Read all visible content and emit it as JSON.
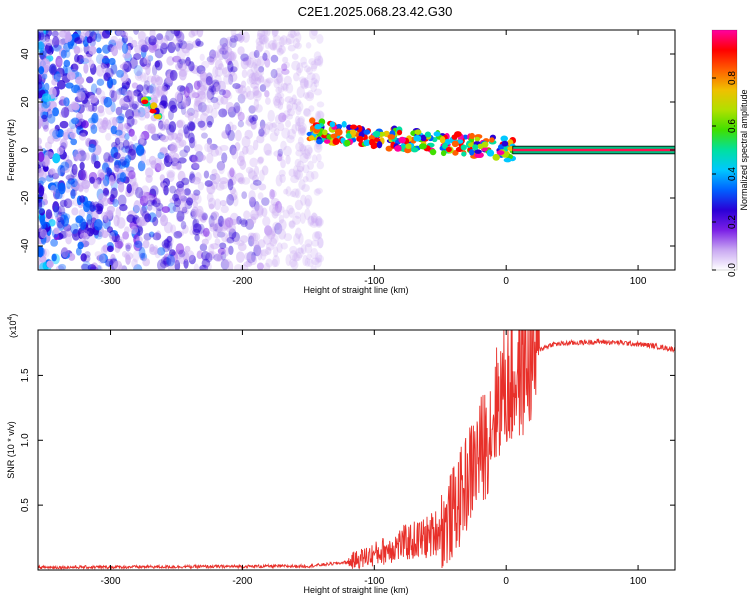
{
  "title": "C2E1.2025.068.23.42.G30",
  "chart_data": [
    {
      "type": "heatmap",
      "name": "spectrogram",
      "xlabel": "Height of straight line (km)",
      "ylabel": "Frequency (Hz)",
      "xlim": [
        -355,
        128
      ],
      "ylim": [
        -50,
        50
      ],
      "xticks": [
        -300,
        -200,
        -100,
        0,
        100
      ],
      "yticks": [
        -40,
        -20,
        0,
        20,
        40
      ],
      "colorbar": {
        "label": "Normalized spectral amplitude",
        "range": [
          0,
          1
        ],
        "ticks": [
          "0.0",
          "0.2",
          "0.4",
          "0.6",
          "0.8"
        ],
        "colors": [
          "#ffffff",
          "#c9a8f2",
          "#7a1fe6",
          "#2a00d6",
          "#0060ff",
          "#00c8ff",
          "#00e0a0",
          "#40e000",
          "#b0e000",
          "#f0c000",
          "#ff6000",
          "#ff0000",
          "#ff00a0"
        ]
      },
      "features": [
        {
          "desc": "broadband noise",
          "x": [
            -355,
            -140
          ],
          "y": [
            -50,
            50
          ]
        },
        {
          "desc": "sloped signal track",
          "x": [
            -150,
            5
          ],
          "y_start": 8,
          "y_end": 0
        },
        {
          "desc": "early track fragment",
          "x": [
            -275,
            -262
          ],
          "y_start": 22,
          "y_end": 14
        },
        {
          "desc": "constant line",
          "x": [
            5,
            128
          ],
          "y": 0
        }
      ]
    },
    {
      "type": "line",
      "name": "snr",
      "xlabel": "Height of straight line (km)",
      "ylabel": "SNR (10 * v/v)",
      "scale_label": "(x10",
      "scale_exp": "4",
      "scale_close": ")",
      "xlim": [
        -355,
        128
      ],
      "ylim": [
        0,
        1.85
      ],
      "xticks": [
        -300,
        -200,
        -100,
        0,
        100
      ],
      "yticks": [
        "0.5",
        "1.0",
        "1.5"
      ],
      "ytick_values": [
        0.5,
        1.0,
        1.5
      ],
      "color": "#e8302a",
      "series": [
        {
          "x": [
            -355,
            -150,
            -120,
            -100,
            -80,
            -60,
            -45,
            -35,
            -25,
            -15,
            -5,
            5,
            15,
            25,
            35,
            50,
            70,
            90,
            110,
            128
          ],
          "y": [
            0.02,
            0.03,
            0.06,
            0.12,
            0.2,
            0.25,
            0.35,
            0.55,
            0.8,
            1.0,
            1.35,
            1.45,
            1.6,
            1.7,
            1.74,
            1.75,
            1.76,
            1.75,
            1.73,
            1.7
          ]
        }
      ]
    }
  ]
}
